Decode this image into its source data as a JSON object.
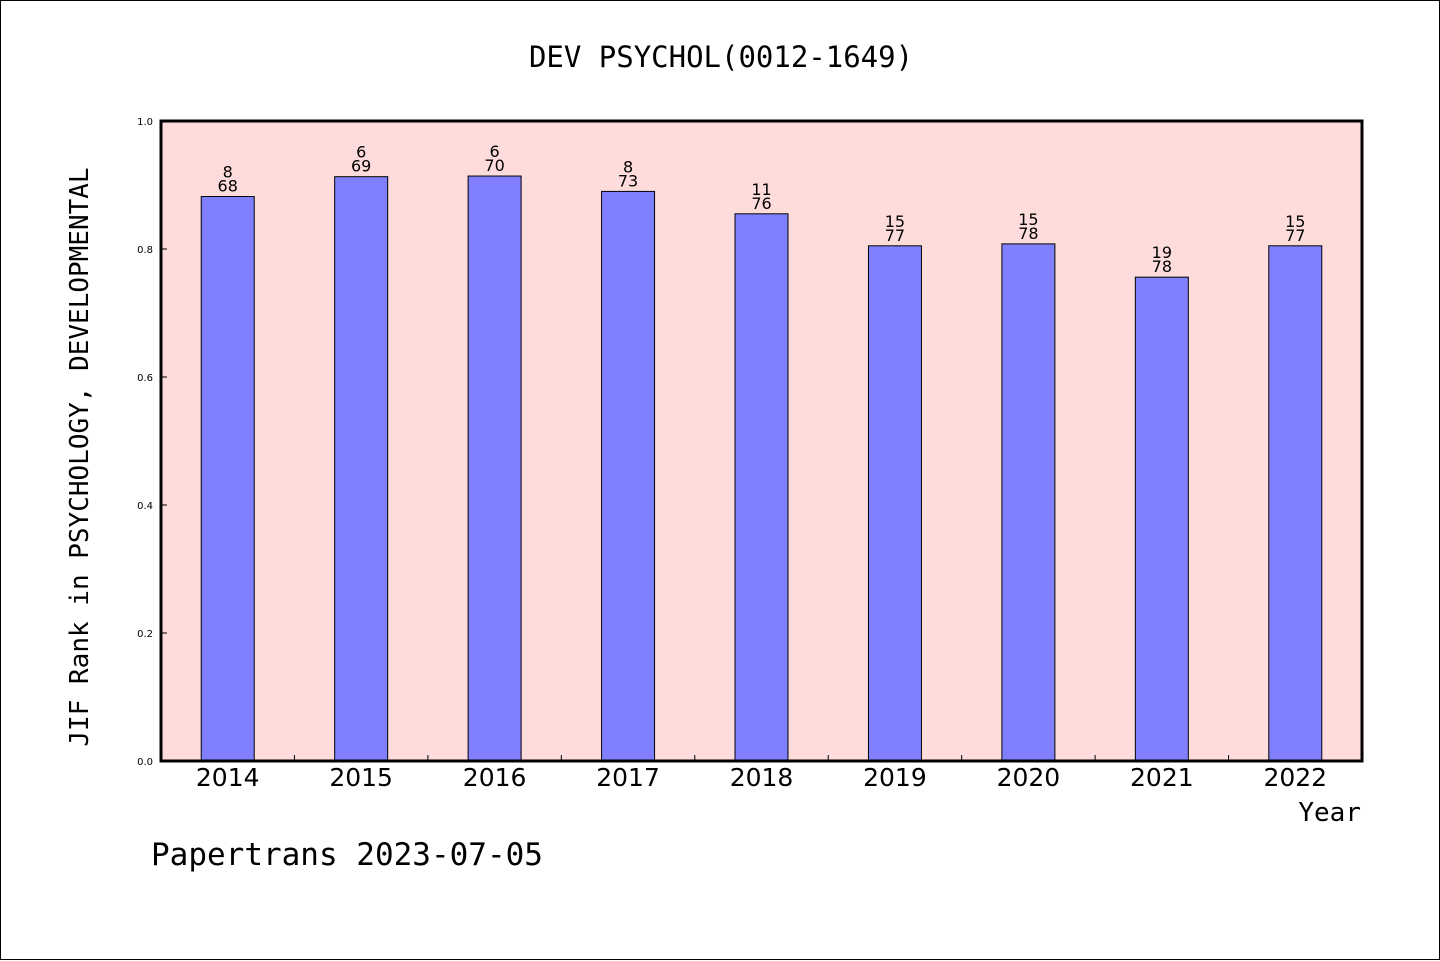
{
  "chart_data": {
    "type": "bar",
    "title": "DEV PSYCHOL(0012-1649)",
    "xlabel": "Year",
    "ylabel": "JIF Rank in PSYCHOLOGY, DEVELOPMENTAL",
    "categories": [
      "2014",
      "2015",
      "2016",
      "2017",
      "2018",
      "2019",
      "2020",
      "2021",
      "2022"
    ],
    "values": [
      0.882,
      0.913,
      0.914,
      0.89,
      0.855,
      0.805,
      0.808,
      0.756,
      0.805
    ],
    "rank_labels": [
      "8",
      "6",
      "6",
      "8",
      "11",
      "15",
      "15",
      "19",
      "15"
    ],
    "total_labels": [
      "68",
      "69",
      "70",
      "73",
      "76",
      "77",
      "78",
      "78",
      "77"
    ],
    "ylim": [
      0,
      1.0
    ],
    "yticks": [
      "0.0",
      "0.2",
      "0.4",
      "0.6",
      "0.8",
      "1.0"
    ],
    "grid": false,
    "bar_color": "#8080ff",
    "plot_background": "#ffdcdc"
  },
  "footer": "Papertrans 2023-07-05"
}
